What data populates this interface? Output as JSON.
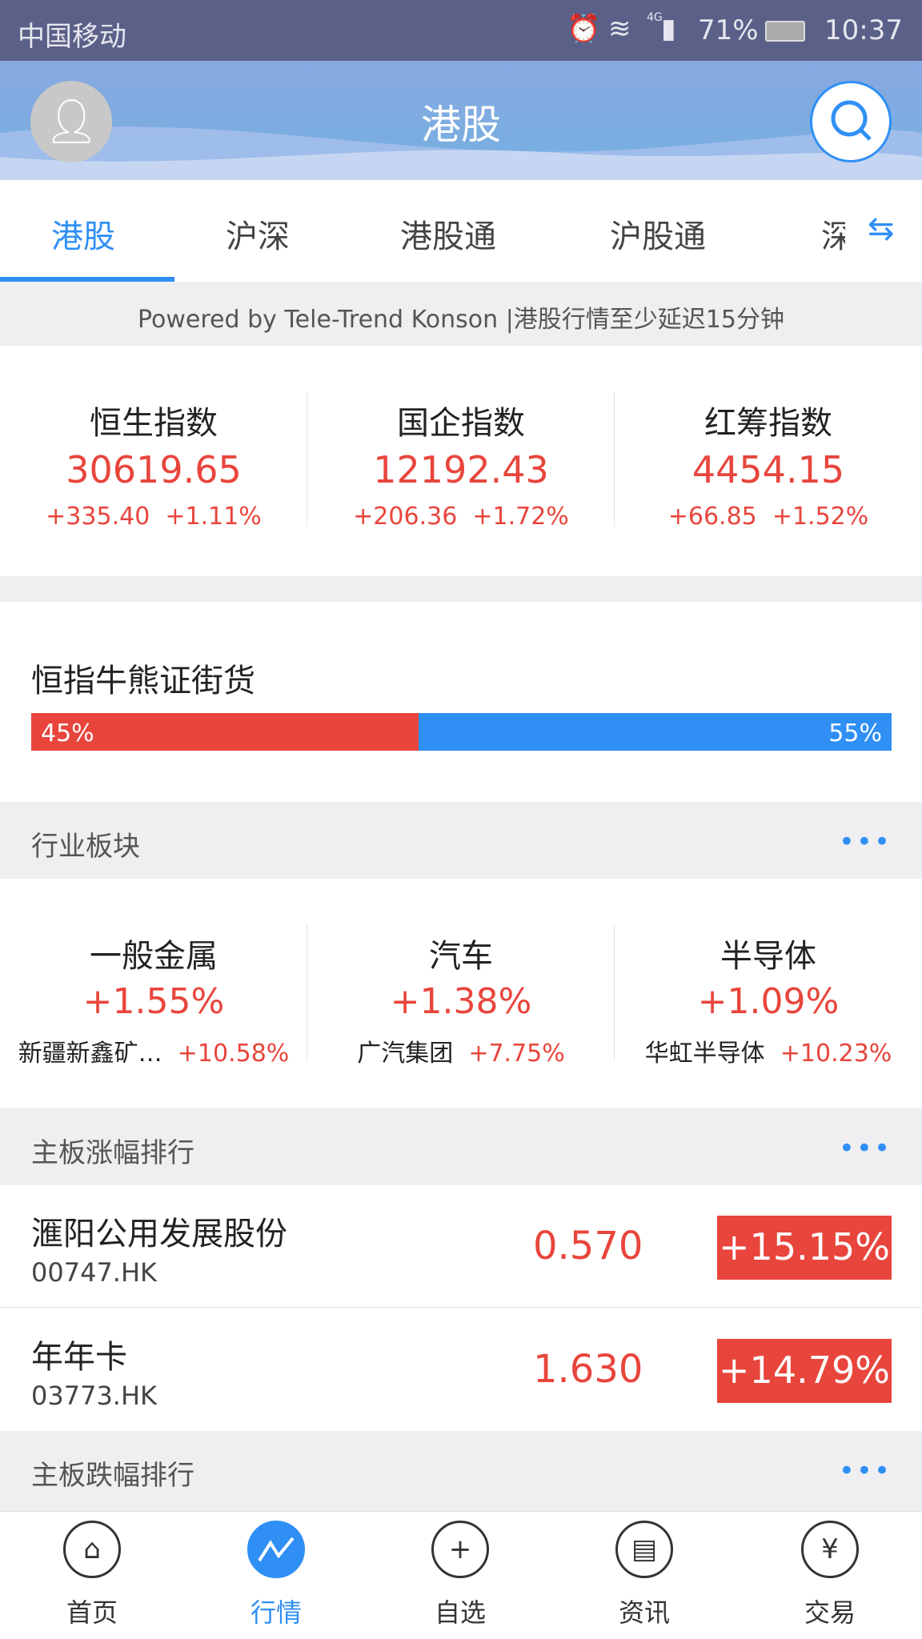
{
  "status_bar": {
    "carrier": "中国移动",
    "network": "4G",
    "battery": "71%",
    "time": "10:37"
  },
  "header": {
    "title": "港股",
    "avatar_icon": "user-icon",
    "search_icon": "search-icon"
  },
  "tabs": [
    {
      "label": "港股",
      "active": true
    },
    {
      "label": "沪深"
    },
    {
      "label": "港股通"
    },
    {
      "label": "沪股通"
    },
    {
      "label": "深"
    }
  ],
  "notice": "Powered by Tele-Trend Konson |港股行情至少延迟15分钟",
  "indices": [
    {
      "name": "恒生指数",
      "value": "30619.65",
      "change": "+335.40",
      "pct": "+1.11%"
    },
    {
      "name": "国企指数",
      "value": "12192.43",
      "change": "+206.36",
      "pct": "+1.72%"
    },
    {
      "name": "红筹指数",
      "value": "4454.15",
      "change": "+66.85",
      "pct": "+1.52%"
    }
  ],
  "bull_bear": {
    "title": "恒指牛熊证街货",
    "bull_pct": 45,
    "bear_pct": 55,
    "bull_label": "45%",
    "bear_label": "55%",
    "colors": {
      "bull": "#e8453c",
      "bear": "#2f8ff5"
    }
  },
  "sectors": {
    "title": "行业板块",
    "more": "•••",
    "items": [
      {
        "name": "一般金属",
        "pct": "+1.55%",
        "leader": "新疆新鑫矿…",
        "leader_pct": "+10.58%"
      },
      {
        "name": "汽车",
        "pct": "+1.38%",
        "leader": "广汽集团",
        "leader_pct": "+7.75%"
      },
      {
        "name": "半导体",
        "pct": "+1.09%",
        "leader": "华虹半导体",
        "leader_pct": "+10.23%"
      }
    ]
  },
  "gainers": {
    "title": "主板涨幅排行",
    "more": "•••",
    "rows": [
      {
        "name": "滙阳公用发展股份",
        "code": "00747.HK",
        "price": "0.570",
        "pct": "+15.15%"
      },
      {
        "name": "年年卡",
        "code": "03773.HK",
        "price": "1.630",
        "pct": "+14.79%"
      }
    ]
  },
  "losers": {
    "title": "主板跌幅排行",
    "more": "•••"
  },
  "bottom_nav": [
    {
      "label": "首页",
      "icon": "home-icon"
    },
    {
      "label": "行情",
      "icon": "market-chart-icon",
      "active": true
    },
    {
      "label": "自选",
      "icon": "plus-icon"
    },
    {
      "label": "资讯",
      "icon": "news-icon"
    },
    {
      "label": "交易",
      "icon": "yen-icon"
    }
  ],
  "colors": {
    "accent": "#2f8ff5",
    "up": "#e8453c"
  }
}
